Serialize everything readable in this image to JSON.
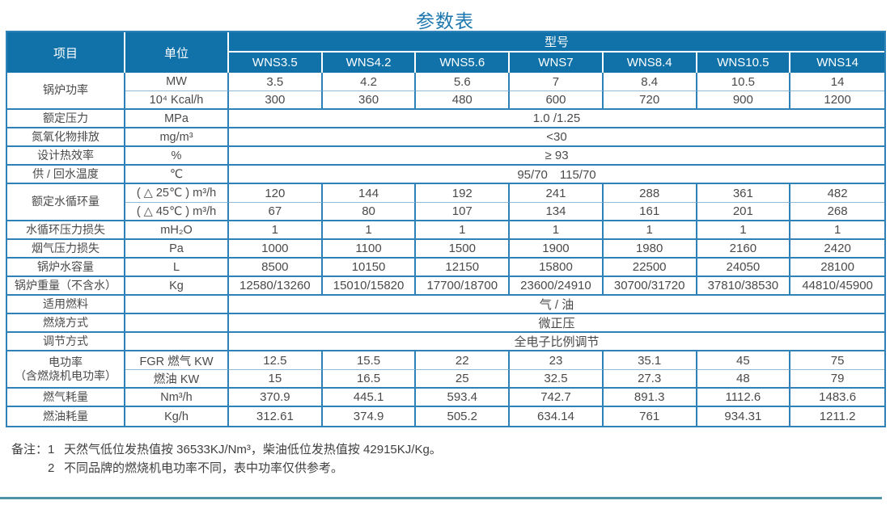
{
  "title": "参数表",
  "colors": {
    "header_bg": "#1172a9",
    "table_border": "#2f82b7",
    "sub_row_border": "#8fbbd9",
    "title_text": "#1d77ae",
    "header_text": "#ffffff",
    "body_text": "#4a4a4a",
    "footer_line": "#4f93aa"
  },
  "table": {
    "header": {
      "item_label": "项目",
      "unit_label": "单位",
      "model_group_label": "型号",
      "models": [
        "WNS3.5",
        "WNS4.2",
        "WNS5.6",
        "WNS7",
        "WNS8.4",
        "WNS10.5",
        "WNS14"
      ]
    },
    "body": [
      {
        "item": "锅炉功率",
        "unit": "MW",
        "cells": [
          "3.5",
          "4.2",
          "5.6",
          "7",
          "8.4",
          "10.5",
          "14"
        ]
      },
      {
        "unit": "10⁴ Kcal/h",
        "cells": [
          "300",
          "360",
          "480",
          "600",
          "720",
          "900",
          "1200"
        ]
      },
      {
        "item": "额定压力",
        "unit": "MPa",
        "merged": "1.0 /1.25"
      },
      {
        "item": "氮氧化物排放",
        "unit": "mg/m³",
        "merged": "<30"
      },
      {
        "item": "设计热效率",
        "unit": "%",
        "merged": "≥ 93"
      },
      {
        "item": "供 / 回水温度",
        "unit": "℃",
        "merged": "95/70　115/70"
      },
      {
        "item": "额定水循环量",
        "unit": "( △ 25℃ ) m³/h",
        "cells": [
          "120",
          "144",
          "192",
          "241",
          "288",
          "361",
          "482"
        ]
      },
      {
        "unit": "( △ 45℃ ) m³/h",
        "cells": [
          "67",
          "80",
          "107",
          "134",
          "161",
          "201",
          "268"
        ]
      },
      {
        "item": "水循环压力损失",
        "unit": "mH₂O",
        "cells": [
          "1",
          "1",
          "1",
          "1",
          "1",
          "1",
          "1"
        ]
      },
      {
        "item": "烟气压力损失",
        "unit": "Pa",
        "cells": [
          "1000",
          "1100",
          "1500",
          "1900",
          "1980",
          "2160",
          "2420"
        ]
      },
      {
        "item": "锅炉水容量",
        "unit": "L",
        "cells": [
          "8500",
          "10150",
          "12150",
          "15800",
          "22500",
          "24050",
          "28100"
        ]
      },
      {
        "item": "锅炉重量（不含水）",
        "unit": "Kg",
        "cells": [
          "12580/13260",
          "15010/15820",
          "17700/18700",
          "23600/24910",
          "30700/31720",
          "37810/38530",
          "44810/45900"
        ]
      },
      {
        "item": "适用燃料",
        "unit": "",
        "merged": "气 / 油"
      },
      {
        "item": "燃烧方式",
        "unit": "",
        "merged": "微正压"
      },
      {
        "item": "调节方式",
        "unit": "",
        "merged": "全电子比例调节"
      },
      {
        "item": "电功率\n（含燃烧机电功率）",
        "unit": "FGR 燃气 KW",
        "cells": [
          "12.5",
          "15.5",
          "22",
          "23",
          "35.1",
          "45",
          "75"
        ]
      },
      {
        "unit": "燃油 KW",
        "cells": [
          "15",
          "16.5",
          "25",
          "32.5",
          "27.3",
          "48",
          "79"
        ]
      },
      {
        "item": "燃气耗量",
        "unit": "Nm³/h",
        "cells": [
          "370.9",
          "445.1",
          "593.4",
          "742.7",
          "891.3",
          "1112.6",
          "1483.6"
        ]
      },
      {
        "item": "燃油耗量",
        "unit": "Kg/h",
        "cells": [
          "312.61",
          "374.9",
          "505.2",
          "634.14",
          "761",
          "934.31",
          "1211.2"
        ]
      }
    ]
  },
  "notes": {
    "label": "备注：",
    "items": [
      {
        "n": "1",
        "text": "天然气低位发热值按 36533KJ/Nm³，柴油低位发热值按 42915KJ/Kg。"
      },
      {
        "n": "2",
        "text": "不同品牌的燃烧机电功率不同，表中功率仅供参考。"
      }
    ]
  }
}
